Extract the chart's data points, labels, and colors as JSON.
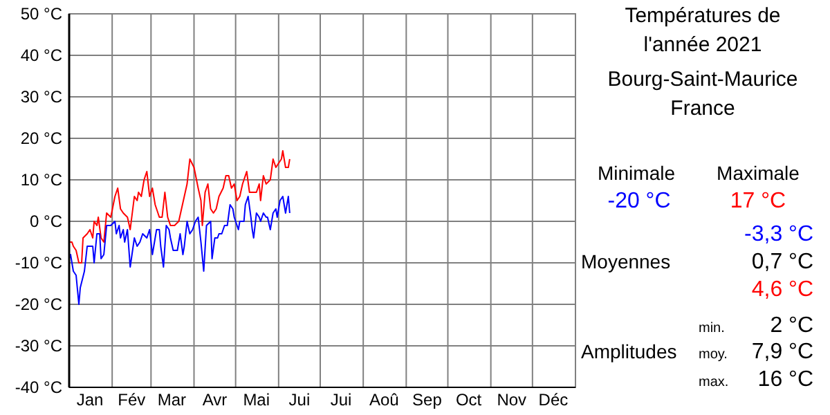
{
  "chart_data": [
    {
      "type": "line",
      "xlim": [
        "2021-01-01",
        "2022-01-01"
      ],
      "ylim": [
        -40,
        50
      ],
      "xticks": [
        {
          "value": "2021-01-01",
          "label": null
        },
        {
          "value": "2021-01-16",
          "label": "Jan"
        },
        {
          "value": "2021-02-01",
          "label": null
        },
        {
          "value": "2021-02-15",
          "label": "Fév"
        },
        {
          "value": "2021-03-01",
          "label": null
        },
        {
          "value": "2021-03-16",
          "label": "Mar"
        },
        {
          "value": "2021-04-01",
          "label": null
        },
        {
          "value": "2021-04-16",
          "label": "Avr"
        },
        {
          "value": "2021-05-01",
          "label": null
        },
        {
          "value": "2021-05-16",
          "label": "Mai"
        },
        {
          "value": "2021-06-01",
          "label": null
        },
        {
          "value": "2021-06-16",
          "label": "Jui"
        },
        {
          "value": "2021-07-01",
          "label": null
        },
        {
          "value": "2021-07-16",
          "label": "Jui"
        },
        {
          "value": "2021-08-01",
          "label": null
        },
        {
          "value": "2021-08-16",
          "label": "Aoû"
        },
        {
          "value": "2021-09-01",
          "label": null
        },
        {
          "value": "2021-09-16",
          "label": "Sep"
        },
        {
          "value": "2021-10-01",
          "label": null
        },
        {
          "value": "2021-10-16",
          "label": "Oct"
        },
        {
          "value": "2021-11-01",
          "label": null
        },
        {
          "value": "2021-11-16",
          "label": "Nov"
        },
        {
          "value": "2021-12-01",
          "label": null
        },
        {
          "value": "2021-12-16",
          "label": "Déc"
        },
        {
          "value": "2022-01-01",
          "label": null
        }
      ],
      "yticks": [
        {
          "value": -40,
          "label": "-40 °C"
        },
        {
          "value": -30,
          "label": "-30 °C"
        },
        {
          "value": -20,
          "label": "-20 °C"
        },
        {
          "value": -10,
          "label": "-10 °C"
        },
        {
          "value": 0,
          "label": "0 °C"
        },
        {
          "value": 10,
          "label": "10 °C"
        },
        {
          "value": 20,
          "label": "20 °C"
        },
        {
          "value": 30,
          "label": "30 °C"
        },
        {
          "value": 40,
          "label": "40 °C"
        },
        {
          "value": 50,
          "label": "50 °C"
        }
      ],
      "grid": true,
      "series": [
        {
          "color": "#ff0000",
          "x": [
            "2021-01-01",
            "2021-01-03",
            "2021-01-04",
            "2021-01-06",
            "2021-01-08",
            "2021-01-10",
            "2021-01-11",
            "2021-01-14",
            "2021-01-16",
            "2021-01-18",
            "2021-01-19",
            "2021-01-21",
            "2021-01-22",
            "2021-01-24",
            "2021-01-26",
            "2021-01-28",
            "2021-01-31",
            "2021-02-03",
            "2021-02-05",
            "2021-02-07",
            "2021-02-09",
            "2021-02-12",
            "2021-02-14",
            "2021-02-17",
            "2021-02-19",
            "2021-02-20",
            "2021-02-22",
            "2021-02-24",
            "2021-02-26",
            "2021-02-28",
            "2021-03-02",
            "2021-03-04",
            "2021-03-07",
            "2021-03-09",
            "2021-03-11",
            "2021-03-13",
            "2021-03-15",
            "2021-03-18",
            "2021-03-21",
            "2021-03-23",
            "2021-03-25",
            "2021-03-27",
            "2021-03-29",
            "2021-04-01",
            "2021-04-04",
            "2021-04-06",
            "2021-04-07",
            "2021-04-09",
            "2021-04-11",
            "2021-04-13",
            "2021-04-15",
            "2021-04-17",
            "2021-04-19",
            "2021-04-22",
            "2021-04-24",
            "2021-04-26",
            "2021-04-28",
            "2021-04-30",
            "2021-05-02",
            "2021-05-04",
            "2021-05-06",
            "2021-05-09",
            "2021-05-11",
            "2021-05-14",
            "2021-05-16",
            "2021-05-18",
            "2021-05-19",
            "2021-05-21",
            "2021-05-23",
            "2021-05-26",
            "2021-05-28",
            "2021-05-30",
            "2021-06-01",
            "2021-06-03",
            "2021-06-04",
            "2021-06-06",
            "2021-06-08",
            "2021-06-09"
          ],
          "values": [
            -5,
            -5,
            -6,
            -7,
            -10,
            -10,
            -4,
            -3,
            -2,
            -4,
            0,
            -1,
            1,
            -4,
            -5,
            2,
            1,
            6,
            8,
            3,
            2,
            1,
            -2,
            6,
            5,
            7,
            6,
            10,
            12,
            6,
            8,
            4,
            1,
            1,
            7,
            1,
            -1,
            -1,
            0,
            3,
            6,
            9,
            15,
            13,
            8,
            5,
            -1,
            7,
            9,
            3,
            2,
            3,
            6,
            8,
            11,
            11,
            8,
            9,
            5,
            6,
            9,
            12,
            7,
            7,
            7,
            9,
            5,
            11,
            9,
            10,
            15,
            13,
            14,
            15,
            17,
            13,
            13,
            15
          ]
        },
        {
          "color": "#0000ff",
          "x": [
            "2021-01-01",
            "2021-01-02",
            "2021-01-03",
            "2021-01-04",
            "2021-01-06",
            "2021-01-08",
            "2021-01-09",
            "2021-01-12",
            "2021-01-14",
            "2021-01-16",
            "2021-01-18",
            "2021-01-19",
            "2021-01-21",
            "2021-01-23",
            "2021-01-24",
            "2021-01-26",
            "2021-01-28",
            "2021-01-31",
            "2021-02-03",
            "2021-02-04",
            "2021-02-06",
            "2021-02-07",
            "2021-02-09",
            "2021-02-10",
            "2021-02-12",
            "2021-02-14",
            "2021-02-17",
            "2021-02-19",
            "2021-02-21",
            "2021-02-23",
            "2021-02-26",
            "2021-02-28",
            "2021-03-02",
            "2021-03-05",
            "2021-03-07",
            "2021-03-08",
            "2021-03-10",
            "2021-03-12",
            "2021-03-14",
            "2021-03-15",
            "2021-03-17",
            "2021-03-20",
            "2021-03-22",
            "2021-03-24",
            "2021-03-25",
            "2021-03-27",
            "2021-03-29",
            "2021-03-31",
            "2021-04-02",
            "2021-04-04",
            "2021-04-05",
            "2021-04-06",
            "2021-04-08",
            "2021-04-10",
            "2021-04-13",
            "2021-04-14",
            "2021-04-16",
            "2021-04-18",
            "2021-04-19",
            "2021-04-21",
            "2021-04-23",
            "2021-04-25",
            "2021-04-27",
            "2021-04-29",
            "2021-04-30",
            "2021-05-03",
            "2021-05-04",
            "2021-05-07",
            "2021-05-08",
            "2021-05-10",
            "2021-05-12",
            "2021-05-13",
            "2021-05-14",
            "2021-05-16",
            "2021-05-18",
            "2021-05-19",
            "2021-05-21",
            "2021-05-23",
            "2021-05-24",
            "2021-05-26",
            "2021-05-28",
            "2021-05-30",
            "2021-05-31",
            "2021-06-02",
            "2021-06-04",
            "2021-06-06",
            "2021-06-08",
            "2021-06-09"
          ],
          "values": [
            -9,
            -8,
            -10,
            -12,
            -13,
            -20,
            -16,
            -12,
            -6,
            -6,
            -6,
            -10,
            -3,
            -3,
            -9,
            -8,
            -1,
            -1,
            0,
            -3,
            -1,
            -4,
            -2,
            -5,
            -2,
            -11,
            -4,
            -6,
            -5,
            -3,
            -4,
            -2,
            -8,
            -2,
            -2,
            -6,
            -11,
            -1,
            -2,
            -4,
            -7,
            -7,
            -3,
            -8,
            -6,
            0,
            -3,
            -2,
            0,
            1,
            -2,
            -5,
            -12,
            -1,
            0,
            -9,
            -4,
            -4,
            -3,
            -3,
            -1,
            -1,
            4,
            3,
            1,
            -2,
            0,
            0,
            4,
            6,
            1,
            -2,
            -4,
            2,
            1,
            0,
            2,
            1,
            1,
            -2,
            2,
            3,
            1,
            5,
            6,
            2,
            6,
            2
          ]
        }
      ]
    },
    {
      "type": "other",
      "title": "Températures de l'année 2021",
      "subtitle": "Bourg-Saint-Maurice\nFrance",
      "annotations": [
        "Minimale",
        "Maximale",
        "-20 °C",
        "17 °C",
        "-3,3 °C",
        "Moyennes",
        "0,7 °C",
        "4,6 °C",
        "min.",
        "2 °C",
        "Amplitudes",
        "moy.",
        "7,9 °C",
        "max.",
        "16 °C"
      ]
    }
  ]
}
